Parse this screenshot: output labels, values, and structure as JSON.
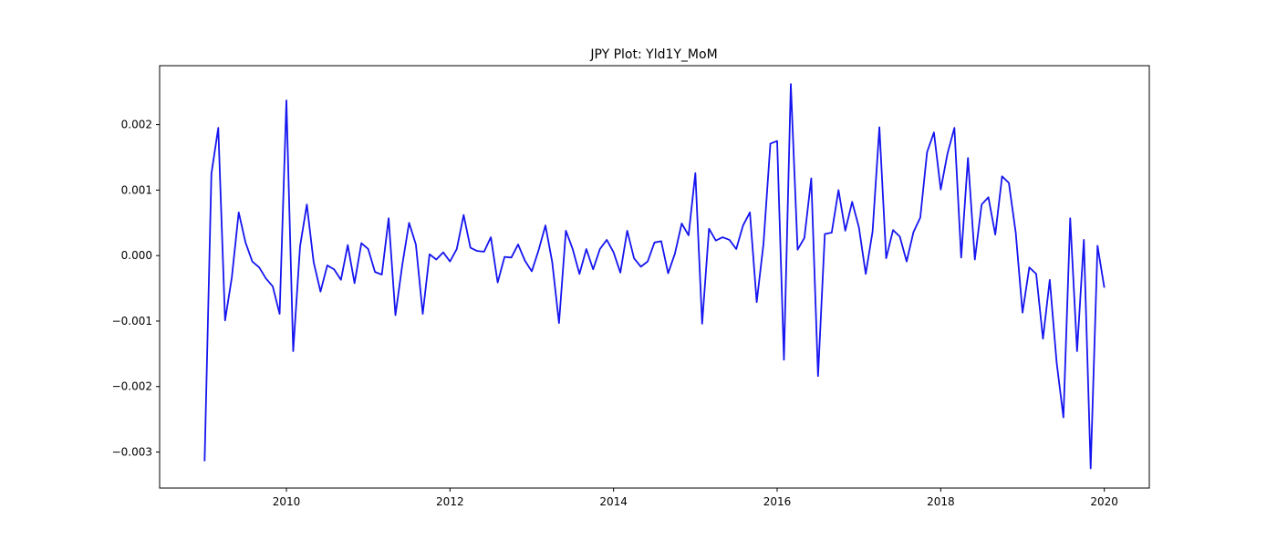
{
  "chart_data": {
    "type": "line",
    "title": "JPY Plot: Yld1Y_MoM",
    "xlabel": "",
    "ylabel": "",
    "xlim": [
      2008.45,
      2020.55
    ],
    "ylim": [
      -0.00355,
      0.0029
    ],
    "x_ticks": [
      2010,
      2012,
      2014,
      2016,
      2018,
      2020
    ],
    "x_tick_labels": [
      "2010",
      "2012",
      "2014",
      "2016",
      "2018",
      "2020"
    ],
    "y_ticks": [
      -0.003,
      -0.002,
      -0.001,
      0.0,
      0.001,
      0.002
    ],
    "y_tick_labels": [
      "−0.003",
      "−0.002",
      "−0.001",
      "0.000",
      "0.001",
      "0.002"
    ],
    "grid": false,
    "legend": "none",
    "series": [
      {
        "color": "#1515f0",
        "x": [
          2009.0,
          2009.083,
          2009.167,
          2009.25,
          2009.333,
          2009.417,
          2009.5,
          2009.583,
          2009.667,
          2009.75,
          2009.833,
          2009.917,
          2010.0,
          2010.083,
          2010.167,
          2010.25,
          2010.333,
          2010.417,
          2010.5,
          2010.583,
          2010.667,
          2010.75,
          2010.833,
          2010.917,
          2011.0,
          2011.083,
          2011.167,
          2011.25,
          2011.333,
          2011.417,
          2011.5,
          2011.583,
          2011.667,
          2011.75,
          2011.833,
          2011.917,
          2012.0,
          2012.083,
          2012.167,
          2012.25,
          2012.333,
          2012.417,
          2012.5,
          2012.583,
          2012.667,
          2012.75,
          2012.833,
          2012.917,
          2013.0,
          2013.083,
          2013.167,
          2013.25,
          2013.333,
          2013.417,
          2013.5,
          2013.583,
          2013.667,
          2013.75,
          2013.833,
          2013.917,
          2014.0,
          2014.083,
          2014.167,
          2014.25,
          2014.333,
          2014.417,
          2014.5,
          2014.583,
          2014.667,
          2014.75,
          2014.833,
          2014.917,
          2015.0,
          2015.083,
          2015.167,
          2015.25,
          2015.333,
          2015.417,
          2015.5,
          2015.583,
          2015.667,
          2015.75,
          2015.833,
          2015.917,
          2016.0,
          2016.083,
          2016.167,
          2016.25,
          2016.333,
          2016.417,
          2016.5,
          2016.583,
          2016.667,
          2016.75,
          2016.833,
          2016.917,
          2017.0,
          2017.083,
          2017.167,
          2017.25,
          2017.333,
          2017.417,
          2017.5,
          2017.583,
          2017.667,
          2017.75,
          2017.833,
          2017.917,
          2018.0,
          2018.083,
          2018.167,
          2018.25,
          2018.333,
          2018.417,
          2018.5,
          2018.583,
          2018.667,
          2018.75,
          2018.833,
          2018.917,
          2019.0,
          2019.083,
          2019.167,
          2019.25,
          2019.333,
          2019.417,
          2019.5,
          2019.583,
          2019.667,
          2019.75,
          2019.833,
          2019.917,
          2020.0
        ],
        "y": [
          -0.00314,
          0.00125,
          0.00195,
          -0.00099,
          -0.00033,
          0.00066,
          0.0002,
          -9e-05,
          -0.00018,
          -0.00035,
          -0.00047,
          -0.00089,
          0.00237,
          -0.00146,
          0.00014,
          0.00078,
          -0.0001,
          -0.00055,
          -0.00015,
          -0.00021,
          -0.00037,
          0.00016,
          -0.00042,
          0.00019,
          0.0001,
          -0.00025,
          -0.00029,
          0.00057,
          -0.00091,
          -0.00014,
          0.0005,
          0.00017,
          -0.00089,
          2e-05,
          -6e-05,
          5e-05,
          -9e-05,
          0.0001,
          0.00062,
          0.00012,
          7e-05,
          6e-05,
          0.00028,
          -0.00041,
          -2e-05,
          -3e-05,
          0.00017,
          -8e-05,
          -0.00024,
          8e-05,
          0.00046,
          -0.0001,
          -0.00103,
          0.00038,
          0.0001,
          -0.00028,
          0.0001,
          -0.00021,
          0.0001,
          0.00024,
          5e-05,
          -0.00026,
          0.00038,
          -4e-05,
          -0.00017,
          -9e-05,
          0.0002,
          0.00022,
          -0.00027,
          3e-05,
          0.00049,
          0.00031,
          0.00126,
          -0.00104,
          0.00041,
          0.00023,
          0.00028,
          0.00024,
          0.0001,
          0.00046,
          0.00066,
          -0.00071,
          0.00018,
          0.00171,
          0.00175,
          -0.00159,
          0.00262,
          9e-05,
          0.00027,
          0.00118,
          -0.00184,
          0.00033,
          0.00035,
          0.001,
          0.00038,
          0.00082,
          0.00043,
          -0.00028,
          0.00037,
          0.00196,
          -4e-05,
          0.00039,
          0.00029,
          -9e-05,
          0.00036,
          0.00058,
          0.00158,
          0.00188,
          0.00101,
          0.00156,
          0.00195,
          -3e-05,
          0.00149,
          -6e-05,
          0.00078,
          0.00089,
          0.00032,
          0.00121,
          0.00111,
          0.00035,
          -0.00087,
          -0.00018,
          -0.00028,
          -0.00127,
          -0.00037,
          -0.00163,
          -0.00247,
          0.00057,
          -0.00146,
          0.00024,
          -0.00325,
          0.00015,
          -0.00049
        ]
      }
    ]
  }
}
